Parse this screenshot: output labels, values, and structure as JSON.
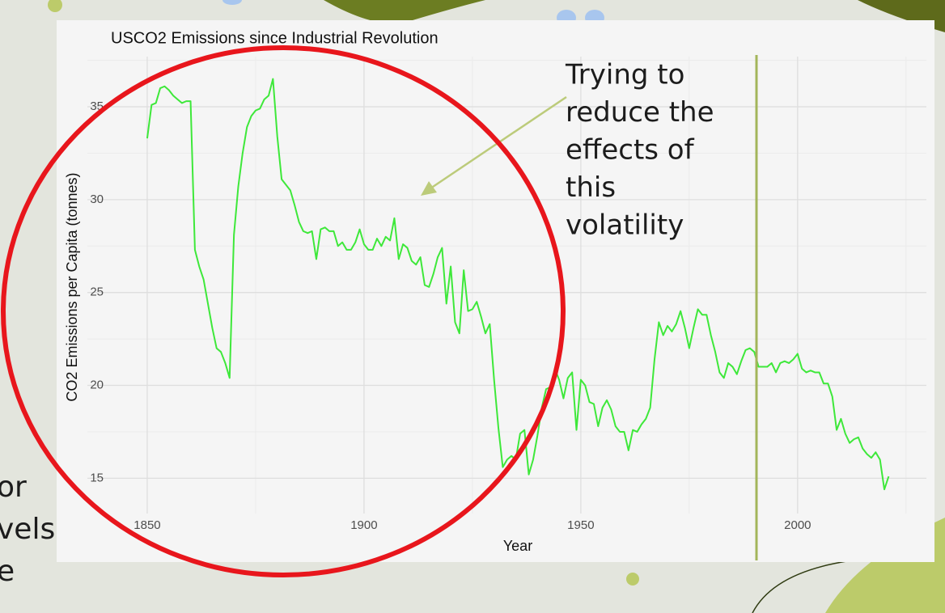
{
  "slide": {
    "fragments": [
      "or",
      "vels",
      "e"
    ]
  },
  "chart_data": {
    "type": "line",
    "title": "USCO2 Emissions since Industrial Revolution",
    "x_label": "Year",
    "y_label": "CO2 Emissions per Capita (tonnes)",
    "annotation": [
      "Trying to",
      "reduce the",
      "effects of",
      "this",
      "volatility"
    ],
    "color": "#3ee83a",
    "grid": true,
    "xlim": [
      1836.2,
      2029.7
    ],
    "ylim": [
      13.1,
      37.7
    ],
    "xticks": [
      1850,
      1900,
      1950,
      2000
    ],
    "yticks": [
      15,
      20,
      25,
      30,
      35
    ],
    "x": [
      1850,
      1851,
      1852,
      1853,
      1854,
      1855,
      1856,
      1857,
      1858,
      1859,
      1860,
      1861,
      1862,
      1863,
      1864,
      1865,
      1866,
      1867,
      1868,
      1869,
      1870,
      1871,
      1872,
      1873,
      1874,
      1875,
      1876,
      1877,
      1878,
      1879,
      1880,
      1881,
      1882,
      1883,
      1884,
      1885,
      1886,
      1887,
      1888,
      1889,
      1890,
      1891,
      1892,
      1893,
      1894,
      1895,
      1896,
      1897,
      1898,
      1899,
      1900,
      1901,
      1902,
      1903,
      1904,
      1905,
      1906,
      1907,
      1908,
      1909,
      1910,
      1911,
      1912,
      1913,
      1914,
      1915,
      1916,
      1917,
      1918,
      1919,
      1920,
      1921,
      1922,
      1923,
      1924,
      1925,
      1926,
      1927,
      1928,
      1929,
      1930,
      1931,
      1932,
      1933,
      1934,
      1935,
      1936,
      1937,
      1938,
      1939,
      1940,
      1941,
      1942,
      1943,
      1944,
      1945,
      1946,
      1947,
      1948,
      1949,
      1950,
      1951,
      1952,
      1953,
      1954,
      1955,
      1956,
      1957,
      1958,
      1959,
      1960,
      1961,
      1962,
      1963,
      1964,
      1965,
      1966,
      1967,
      1968,
      1969,
      1970,
      1971,
      1972,
      1973,
      1974,
      1975,
      1976,
      1977,
      1978,
      1979,
      1980,
      1981,
      1982,
      1983,
      1984,
      1985,
      1986,
      1987,
      1988,
      1989,
      1990,
      1991,
      1992,
      1993,
      1994,
      1995,
      1996,
      1997,
      1998,
      1999,
      2000,
      2001,
      2002,
      2003,
      2004,
      2005,
      2006,
      2007,
      2008,
      2009,
      2010,
      2011,
      2012,
      2013,
      2014,
      2015,
      2016,
      2017,
      2018,
      2019,
      2020,
      2021
    ],
    "values": [
      33.3,
      35.1,
      35.2,
      36.0,
      36.1,
      35.9,
      35.6,
      35.4,
      35.2,
      35.3,
      35.3,
      27.3,
      26.4,
      25.7,
      24.4,
      23.1,
      22.0,
      21.8,
      21.2,
      20.4,
      28.1,
      30.7,
      32.5,
      33.9,
      34.5,
      34.8,
      34.9,
      35.4,
      35.6,
      36.5,
      33.4,
      31.1,
      30.8,
      30.5,
      29.7,
      28.8,
      28.3,
      28.2,
      28.3,
      26.8,
      28.4,
      28.5,
      28.3,
      28.3,
      27.5,
      27.7,
      27.3,
      27.3,
      27.7,
      28.4,
      27.6,
      27.3,
      27.3,
      27.9,
      27.5,
      28.0,
      27.8,
      29.0,
      26.8,
      27.6,
      27.4,
      26.7,
      26.5,
      26.9,
      25.4,
      25.3,
      26.0,
      26.9,
      27.4,
      24.4,
      26.4,
      23.4,
      22.8,
      26.2,
      24.0,
      24.1,
      24.5,
      23.7,
      22.8,
      23.3,
      20.3,
      17.7,
      15.6,
      16.0,
      16.2,
      16.0,
      17.4,
      17.6,
      15.2,
      16.0,
      17.3,
      18.8,
      19.8,
      19.9,
      20.9,
      20.3,
      19.3,
      20.4,
      20.7,
      17.6,
      20.3,
      20.0,
      19.1,
      19.0,
      17.8,
      18.8,
      19.2,
      18.7,
      17.8,
      17.5,
      17.5,
      16.5,
      17.6,
      17.5,
      17.9,
      18.2,
      18.8,
      21.4,
      23.4,
      22.7,
      23.2,
      22.9,
      23.3,
      24.0,
      23.1,
      22.0,
      23.1,
      24.1,
      23.8,
      23.8,
      22.7,
      21.8,
      20.7,
      20.4,
      21.2,
      21.0,
      20.6,
      21.3,
      21.9,
      22.0,
      21.8,
      21.0,
      21.0,
      21.0,
      21.2,
      20.7,
      21.2,
      21.3,
      21.2,
      21.4,
      21.7,
      20.9,
      20.7,
      20.8,
      20.7,
      20.7,
      20.1,
      20.1,
      19.4,
      17.6,
      18.2,
      17.4,
      16.9,
      17.1,
      17.2,
      16.6,
      16.3,
      16.1,
      16.4,
      16.0,
      14.4,
      15.1
    ]
  }
}
